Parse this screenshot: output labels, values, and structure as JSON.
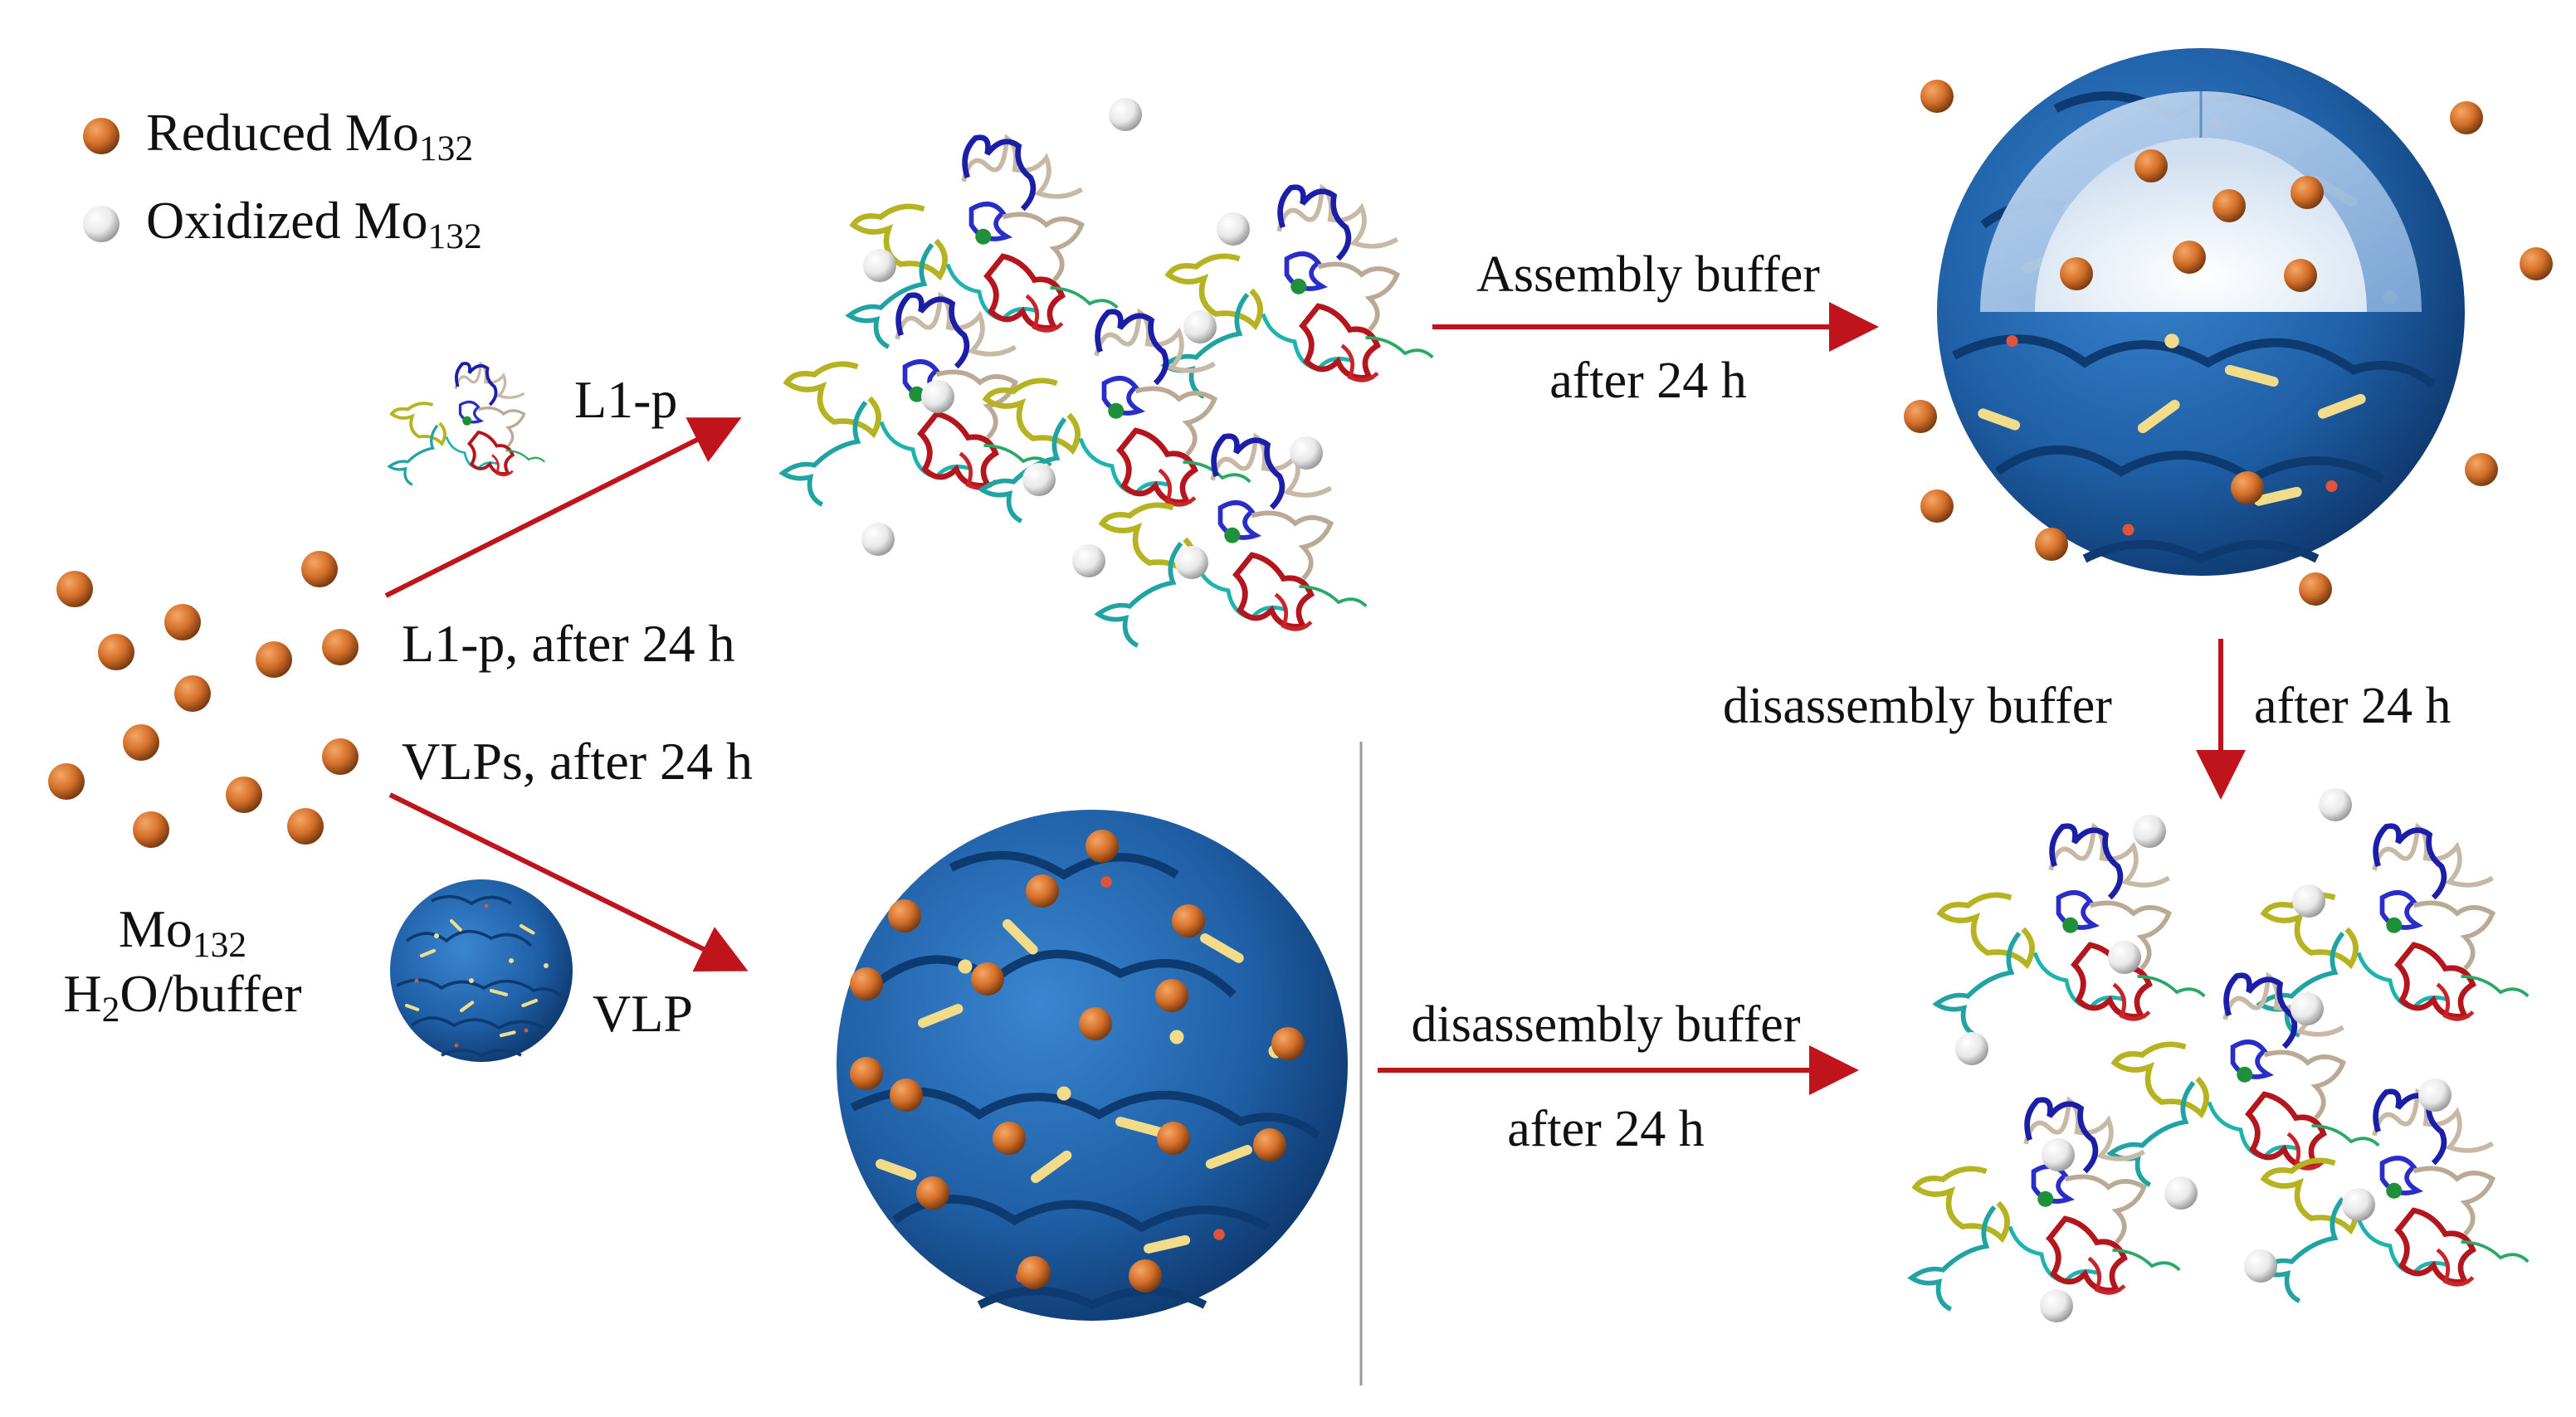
{
  "legend": {
    "reduced_label": "Reduced Mo",
    "reduced_sub": "132",
    "oxidized_label": "Oxidized Mo",
    "oxidized_sub": "132"
  },
  "labels": {
    "l1p": "L1-p",
    "l1p_after": "L1-p, after 24 h",
    "vlps_after": "VLPs, after 24 h",
    "mo_main": "Mo",
    "mo_sub": "132",
    "h2o_a": "H",
    "h2o_sub": "2",
    "h2o_b": "O/buffer",
    "vlp": "VLP",
    "assembly_buffer": "Assembly buffer",
    "after_24h_1": "after 24 h",
    "disassembly_buffer_right": "disassembly buffer",
    "after_24h_right": "after 24 h",
    "disassembly_buffer_bottom": "disassembly buffer",
    "after_24h_bottom": "after 24 h"
  },
  "colors": {
    "reduced": "#d4702a",
    "oxidized": "#e6e6e6",
    "arrow": "#c0141c",
    "vlp_blue": "#1f5fa6",
    "vlp_dark": "#0e3a72"
  }
}
